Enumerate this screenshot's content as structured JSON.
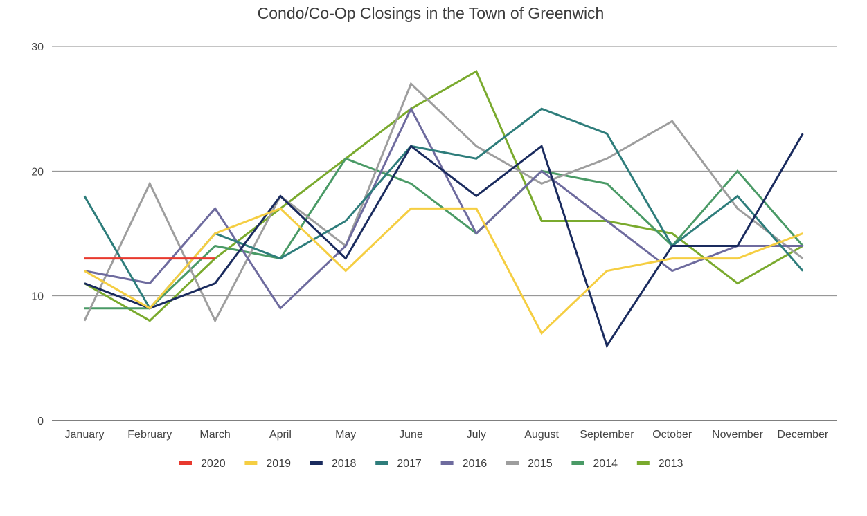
{
  "chart_data": {
    "type": "line",
    "title": "Condo/Co-Op Closings in the Town of Greenwich",
    "xlabel": "",
    "ylabel": "",
    "categories": [
      "January",
      "February",
      "March",
      "April",
      "May",
      "June",
      "July",
      "August",
      "September",
      "October",
      "November",
      "December"
    ],
    "ylim": [
      0,
      30
    ],
    "yticks": [
      0,
      10,
      20,
      30
    ],
    "grid": true,
    "legend_position": "bottom",
    "series": [
      {
        "name": "2020",
        "color": "#e8392e",
        "values": [
          13,
          13,
          13,
          null,
          null,
          null,
          null,
          null,
          null,
          null,
          null,
          null
        ]
      },
      {
        "name": "2019",
        "color": "#f5ce42",
        "values": [
          12,
          9,
          15,
          17,
          12,
          17,
          17,
          7,
          12,
          13,
          13,
          15
        ]
      },
      {
        "name": "2018",
        "color": "#1a2b5e",
        "values": [
          11,
          9,
          11,
          18,
          13,
          22,
          18,
          22,
          6,
          14,
          14,
          23
        ]
      },
      {
        "name": "2017",
        "color": "#2e7d7b",
        "values": [
          18,
          9,
          15,
          13,
          16,
          22,
          21,
          25,
          23,
          14,
          18,
          12
        ]
      },
      {
        "name": "2016",
        "color": "#6e6b9e",
        "values": [
          12,
          11,
          17,
          9,
          14,
          25,
          15,
          20,
          16,
          12,
          14,
          14
        ]
      },
      {
        "name": "2015",
        "color": "#9e9e9e",
        "values": [
          8,
          19,
          8,
          18,
          14,
          27,
          22,
          19,
          21,
          24,
          17,
          13
        ]
      },
      {
        "name": "2014",
        "color": "#4a9a66",
        "values": [
          9,
          9,
          14,
          13,
          21,
          19,
          15,
          20,
          19,
          14,
          20,
          14
        ]
      },
      {
        "name": "2013",
        "color": "#7aaa2e",
        "values": [
          11,
          8,
          13,
          17,
          21,
          25,
          28,
          16,
          16,
          15,
          11,
          14
        ]
      }
    ]
  }
}
